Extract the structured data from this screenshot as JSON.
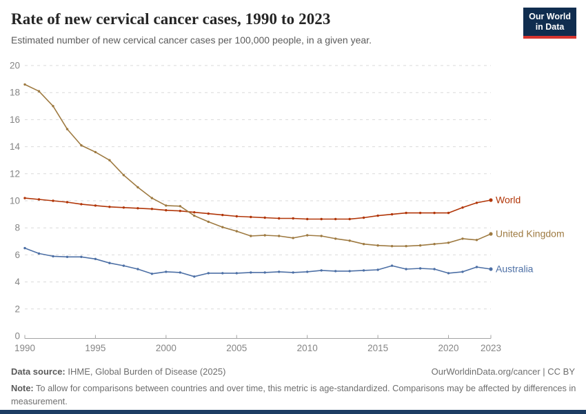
{
  "header": {
    "title": "Rate of new cervical cancer cases, 1990 to 2023",
    "subtitle": "Estimated number of new cervical cancer cases per 100,000 people, in a given year."
  },
  "logo": {
    "line1": "Our World",
    "line2": "in Data",
    "bg_color": "#102D4F",
    "accent_color": "#D7352F"
  },
  "chart_data": {
    "type": "line",
    "title": "Rate of new cervical cancer cases, 1990 to 2023",
    "ylabel": "",
    "xlabel": "",
    "x": [
      1990,
      1991,
      1992,
      1993,
      1994,
      1995,
      1996,
      1997,
      1998,
      1999,
      2000,
      2001,
      2002,
      2003,
      2004,
      2005,
      2006,
      2007,
      2008,
      2009,
      2010,
      2011,
      2012,
      2013,
      2014,
      2015,
      2016,
      2017,
      2018,
      2019,
      2020,
      2021,
      2022,
      2023
    ],
    "series": [
      {
        "name": "World",
        "color": "#B13507",
        "values": [
          10.2,
          10.1,
          10.0,
          9.9,
          9.75,
          9.65,
          9.55,
          9.5,
          9.45,
          9.4,
          9.3,
          9.25,
          9.15,
          9.05,
          8.95,
          8.85,
          8.8,
          8.75,
          8.7,
          8.7,
          8.65,
          8.65,
          8.65,
          8.65,
          8.75,
          8.9,
          9.0,
          9.1,
          9.1,
          9.1,
          9.1,
          9.5,
          9.85,
          10.05
        ]
      },
      {
        "name": "United Kingdom",
        "color": "#9E7A41",
        "values": [
          18.6,
          18.1,
          17.0,
          15.3,
          14.1,
          13.6,
          13.0,
          11.9,
          11.0,
          10.2,
          9.65,
          9.6,
          8.9,
          8.45,
          8.05,
          7.75,
          7.4,
          7.45,
          7.4,
          7.25,
          7.45,
          7.4,
          7.2,
          7.05,
          6.8,
          6.7,
          6.65,
          6.65,
          6.7,
          6.8,
          6.9,
          7.2,
          7.1,
          7.55
        ]
      },
      {
        "name": "Australia",
        "color": "#4C6FA5",
        "values": [
          6.5,
          6.1,
          5.9,
          5.85,
          5.85,
          5.7,
          5.4,
          5.2,
          4.95,
          4.6,
          4.75,
          4.7,
          4.4,
          4.65,
          4.65,
          4.65,
          4.7,
          4.7,
          4.75,
          4.7,
          4.75,
          4.85,
          4.8,
          4.8,
          4.85,
          4.9,
          5.2,
          4.95,
          5.0,
          4.95,
          4.65,
          4.75,
          5.1,
          4.95
        ]
      }
    ],
    "ylim": [
      0,
      20
    ],
    "yticks": [
      0,
      2,
      4,
      6,
      8,
      10,
      12,
      14,
      16,
      18,
      20
    ],
    "xticks": [
      1990,
      1995,
      2000,
      2005,
      2010,
      2015,
      2020,
      2023
    ],
    "grid": "horizontal-dashed",
    "legend_position": "right-end-labels",
    "grid_color": "#d9d9d9",
    "axis_color": "#a3a3a3",
    "tick_label_color": "#858585"
  },
  "footer": {
    "datasource_label": "Data source:",
    "datasource_value": " IHME, Global Burden of Disease (2025)",
    "link": "OurWorldinData.org/cancer | CC BY",
    "note_label": "Note:",
    "note_value": " To allow for comparisons between countries and over time, this metric is age-standardized. Comparisons may be affected by differences in measurement."
  }
}
